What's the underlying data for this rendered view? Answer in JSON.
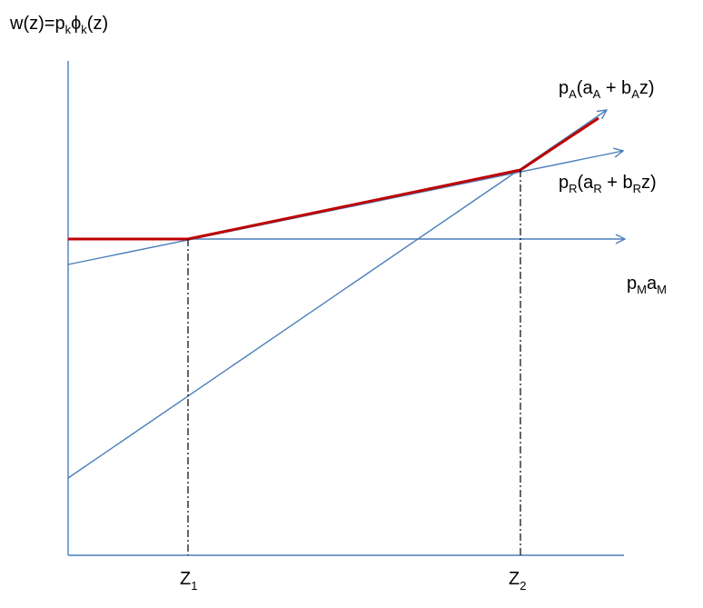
{
  "y_axis_label": {
    "base": "w(z)=p",
    "sub1": "k",
    "phi": "ϕ",
    "sub2": "k",
    "tail": "(z)"
  },
  "labels": {
    "agriculture": {
      "p": "p",
      "p_sub": "A",
      "open": "(a",
      "a_sub": "A",
      "plus": " + b",
      "b_sub": "A",
      "close": "z)"
    },
    "retail": {
      "p": "p",
      "p_sub": "R",
      "open": "(a",
      "a_sub": "R",
      "plus": " + b",
      "b_sub": "R",
      "close": "z)"
    },
    "manufacturing": {
      "p": "p",
      "p_sub": "M",
      "a": "a",
      "a_sub": "M"
    }
  },
  "x_ticks": [
    {
      "base": "Z",
      "sub": "1"
    },
    {
      "base": "Z",
      "sub": "2"
    }
  ],
  "colors": {
    "lines": "#4a7ebb",
    "envelope": "#c00000"
  }
}
